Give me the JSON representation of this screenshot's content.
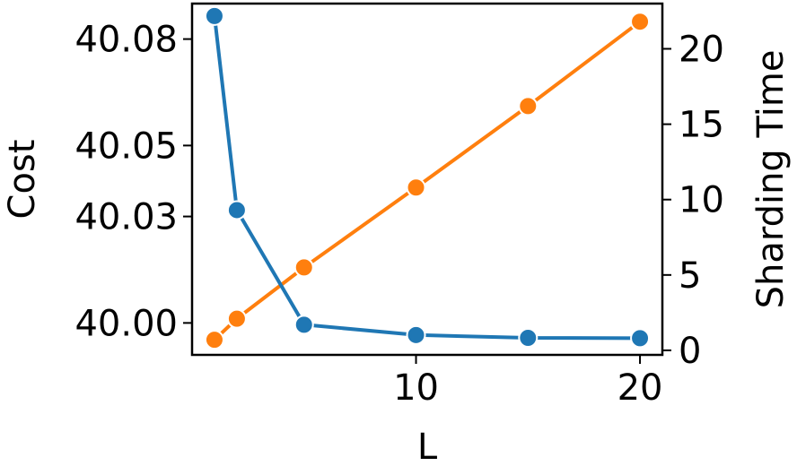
{
  "chart_data": {
    "type": "line",
    "xlabel": "L",
    "ylabel_left": "Cost",
    "ylabel_right": "Sharding Time",
    "x_ticks": [
      10,
      20
    ],
    "y_left_ticks": [
      "40.00",
      "40.03",
      "40.05",
      "40.08"
    ],
    "y_right_ticks": [
      "0",
      "5",
      "10",
      "15",
      "20"
    ],
    "x": [
      1,
      2,
      5,
      10,
      15,
      20
    ],
    "xlim": [
      0,
      21
    ],
    "ylim_left": [
      39.991,
      40.09
    ],
    "ylim_right": [
      -0.3,
      23
    ],
    "grid": false,
    "series": [
      {
        "axis": "left",
        "color": "#1f77b4",
        "values": [
          40.0865,
          40.0318,
          39.9995,
          39.9966,
          39.9958,
          39.9957
        ]
      },
      {
        "axis": "right",
        "color": "#ff7f0e",
        "values": [
          0.7,
          2.1,
          5.5,
          10.8,
          16.2,
          21.8
        ]
      }
    ]
  }
}
